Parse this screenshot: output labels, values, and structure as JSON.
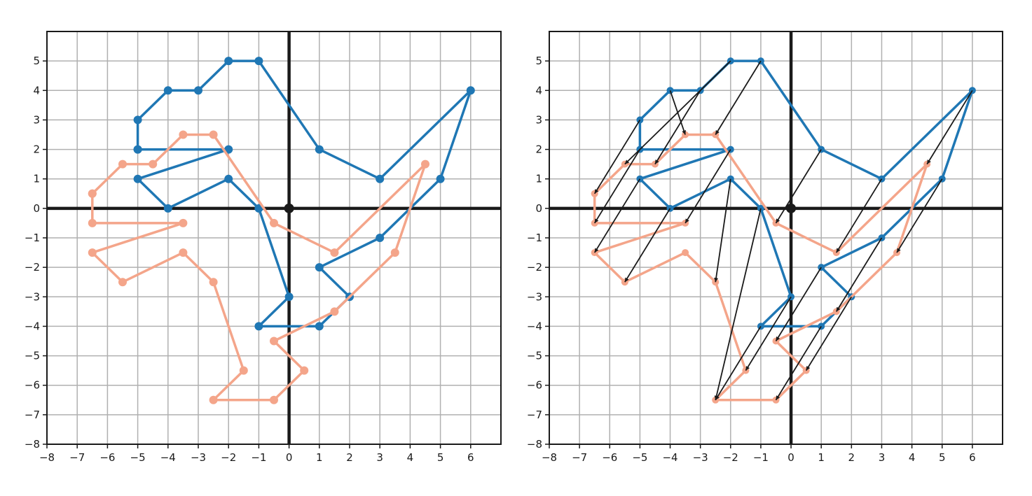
{
  "chart_data": [
    {
      "type": "line",
      "title": "",
      "xlabel": "",
      "ylabel": "",
      "xlim": [
        -8,
        7
      ],
      "ylim": [
        -8,
        6
      ],
      "xticks": [
        -8,
        -7,
        -6,
        -5,
        -4,
        -3,
        -2,
        -1,
        0,
        1,
        2,
        3,
        4,
        5,
        6
      ],
      "yticks": [
        -8,
        -7,
        -6,
        -5,
        -4,
        -3,
        -2,
        -1,
        0,
        1,
        2,
        3,
        4,
        5
      ],
      "xtick_labels": [
        "−8",
        "−7",
        "−6",
        "−5",
        "−4",
        "−3",
        "−2",
        "−1",
        "0",
        "1",
        "2",
        "3",
        "4",
        "5",
        "6"
      ],
      "ytick_labels": [
        "−8",
        "−7",
        "−6",
        "−5",
        "−4",
        "−3",
        "−2",
        "−1",
        "0",
        "1",
        "2",
        "3",
        "4",
        "5"
      ],
      "grid": true,
      "origin_point": [
        0,
        0
      ],
      "series": [
        {
          "color": "#1f77b4",
          "points": [
            [
              -5,
              2
            ],
            [
              -5,
              3
            ],
            [
              -4,
              4
            ],
            [
              -3,
              4
            ],
            [
              -2,
              5
            ],
            [
              -1,
              5
            ],
            [
              1,
              2
            ],
            [
              3,
              1
            ],
            [
              6,
              4
            ],
            [
              5,
              1
            ],
            [
              3,
              -1
            ],
            [
              1,
              -2
            ],
            [
              2,
              -3
            ],
            [
              1,
              -4
            ],
            [
              -1,
              -4
            ],
            [
              0,
              -3
            ],
            [
              -1,
              0
            ],
            [
              -2,
              1
            ],
            [
              -4,
              0
            ],
            [
              -5,
              1
            ],
            [
              -2,
              2
            ],
            [
              -5,
              2
            ]
          ]
        },
        {
          "color": "#f4a58a",
          "points": [
            [
              -6.5,
              0.5
            ],
            [
              -5.5,
              1.5
            ],
            [
              -4.5,
              1.5
            ],
            [
              -3.5,
              2.5
            ],
            [
              -2.5,
              2.5
            ],
            [
              -0.5,
              -0.5
            ],
            [
              1.5,
              -1.5
            ],
            [
              4.5,
              1.5
            ],
            [
              3.5,
              -1.5
            ],
            [
              1.5,
              -3.5
            ],
            [
              -0.5,
              -4.5
            ],
            [
              0.5,
              -5.5
            ],
            [
              -0.5,
              -6.5
            ],
            [
              -2.5,
              -6.5
            ],
            [
              -1.5,
              -5.5
            ],
            [
              -2.5,
              -2.5
            ],
            [
              -3.5,
              -1.5
            ],
            [
              -5.5,
              -2.5
            ],
            [
              -6.5,
              -1.5
            ],
            [
              -3.5,
              -0.5
            ],
            [
              -6.5,
              -0.5
            ],
            [
              -6.5,
              0.5
            ]
          ]
        }
      ]
    },
    {
      "type": "line",
      "title": "",
      "xlabel": "",
      "ylabel": "",
      "xlim": [
        -8,
        7
      ],
      "ylim": [
        -8,
        6
      ],
      "xticks": [
        -8,
        -7,
        -6,
        -5,
        -4,
        -3,
        -2,
        -1,
        0,
        1,
        2,
        3,
        4,
        5,
        6
      ],
      "yticks": [
        -8,
        -7,
        -6,
        -5,
        -4,
        -3,
        -2,
        -1,
        0,
        1,
        2,
        3,
        4,
        5
      ],
      "xtick_labels": [
        "−8",
        "−7",
        "−6",
        "−5",
        "−4",
        "−3",
        "−2",
        "−1",
        "0",
        "1",
        "2",
        "3",
        "4",
        "5",
        "6"
      ],
      "ytick_labels": [
        "−8",
        "−7",
        "−6",
        "−5",
        "−4",
        "−3",
        "−2",
        "−1",
        "0",
        "1",
        "2",
        "3",
        "4",
        "5"
      ],
      "grid": true,
      "origin_point": [
        0,
        0
      ],
      "series": [
        {
          "color": "#1f77b4",
          "points": [
            [
              -5,
              2
            ],
            [
              -5,
              3
            ],
            [
              -4,
              4
            ],
            [
              -3,
              4
            ],
            [
              -2,
              5
            ],
            [
              -1,
              5
            ],
            [
              1,
              2
            ],
            [
              3,
              1
            ],
            [
              6,
              4
            ],
            [
              5,
              1
            ],
            [
              3,
              -1
            ],
            [
              1,
              -2
            ],
            [
              2,
              -3
            ],
            [
              1,
              -4
            ],
            [
              -1,
              -4
            ],
            [
              0,
              -3
            ],
            [
              -1,
              0
            ],
            [
              -2,
              1
            ],
            [
              -4,
              0
            ],
            [
              -5,
              1
            ],
            [
              -2,
              2
            ],
            [
              -5,
              2
            ]
          ]
        },
        {
          "color": "#f4a58a",
          "points": [
            [
              -6.5,
              0.5
            ],
            [
              -5.5,
              1.5
            ],
            [
              -4.5,
              1.5
            ],
            [
              -3.5,
              2.5
            ],
            [
              -2.5,
              2.5
            ],
            [
              -0.5,
              -0.5
            ],
            [
              1.5,
              -1.5
            ],
            [
              4.5,
              1.5
            ],
            [
              3.5,
              -1.5
            ],
            [
              1.5,
              -3.5
            ],
            [
              -0.5,
              -4.5
            ],
            [
              0.5,
              -5.5
            ],
            [
              -0.5,
              -6.5
            ],
            [
              -2.5,
              -6.5
            ],
            [
              -1.5,
              -5.5
            ],
            [
              -2.5,
              -2.5
            ],
            [
              -3.5,
              -1.5
            ],
            [
              -5.5,
              -2.5
            ],
            [
              -6.5,
              -1.5
            ],
            [
              -3.5,
              -0.5
            ],
            [
              -6.5,
              -0.5
            ],
            [
              -6.5,
              0.5
            ]
          ]
        }
      ],
      "arrows": {
        "color": "#1a1a1a",
        "segments": [
          [
            [
              -5,
              3
            ],
            [
              -6.5,
              0.5
            ]
          ],
          [
            [
              -5,
              2
            ],
            [
              -6.5,
              -0.5
            ]
          ],
          [
            [
              -5,
              1
            ],
            [
              -6.5,
              -1.5
            ]
          ],
          [
            [
              -4,
              4
            ],
            [
              -3.5,
              2.5
            ]
          ],
          [
            [
              -4,
              0
            ],
            [
              -5.5,
              -2.5
            ]
          ],
          [
            [
              -3,
              4
            ],
            [
              -4.5,
              1.5
            ]
          ],
          [
            [
              -2,
              5
            ],
            [
              -5.5,
              1.5
            ]
          ],
          [
            [
              -1,
              5
            ],
            [
              -2.5,
              2.5
            ]
          ],
          [
            [
              -2,
              2
            ],
            [
              -3.5,
              -0.5
            ]
          ],
          [
            [
              -2,
              1
            ],
            [
              -2.5,
              -2.5
            ]
          ],
          [
            [
              -1,
              0
            ],
            [
              -2.5,
              -6.5
            ]
          ],
          [
            [
              0,
              -3
            ],
            [
              -1.5,
              -5.5
            ]
          ],
          [
            [
              1,
              -4
            ],
            [
              -0.5,
              -6.5
            ]
          ],
          [
            [
              1,
              -2
            ],
            [
              -0.5,
              -4.5
            ]
          ],
          [
            [
              2,
              -3
            ],
            [
              0.5,
              -5.5
            ]
          ],
          [
            [
              1,
              2
            ],
            [
              -0.5,
              -0.5
            ]
          ],
          [
            [
              3,
              1
            ],
            [
              1.5,
              -1.5
            ]
          ],
          [
            [
              3,
              -1
            ],
            [
              1.5,
              -3.5
            ]
          ],
          [
            [
              5,
              1
            ],
            [
              3.5,
              -1.5
            ]
          ],
          [
            [
              6,
              4
            ],
            [
              4.5,
              1.5
            ]
          ],
          [
            [
              -1,
              -4
            ],
            [
              -2.5,
              -6.5
            ]
          ]
        ]
      }
    }
  ]
}
